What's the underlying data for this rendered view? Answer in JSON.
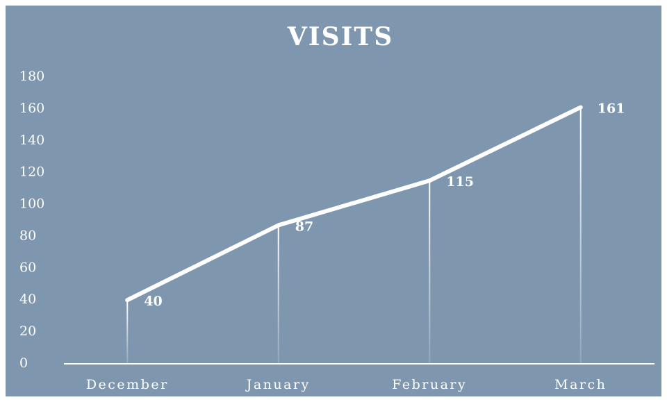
{
  "chart_data": {
    "type": "line",
    "title": "VISITS",
    "categories": [
      "December",
      "January",
      "February",
      "March"
    ],
    "values": [
      40,
      87,
      115,
      161
    ],
    "color": "#ffffff",
    "ylim": [
      0,
      180
    ],
    "yticks": [
      0,
      20,
      40,
      60,
      80,
      100,
      120,
      140,
      160,
      180
    ]
  }
}
